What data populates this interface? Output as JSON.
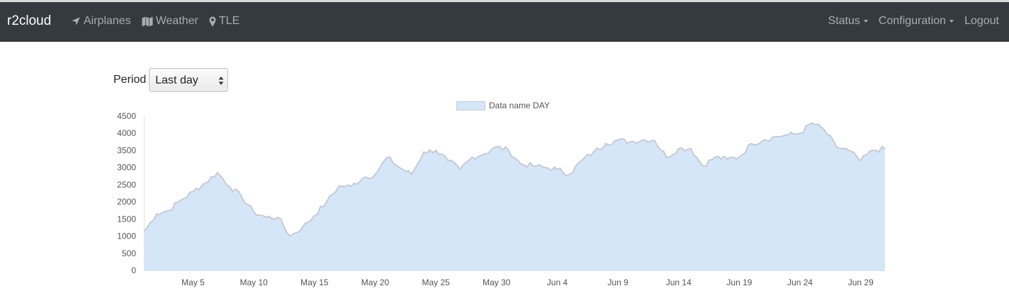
{
  "navbar": {
    "brand": "r2cloud",
    "left_items": [
      {
        "label": "Airplanes",
        "icon": "plane-icon"
      },
      {
        "label": "Weather",
        "icon": "map-icon"
      },
      {
        "label": "TLE",
        "icon": "map-marker-icon"
      }
    ],
    "right_items": [
      {
        "label": "Status",
        "dropdown": true
      },
      {
        "label": "Configuration",
        "dropdown": true
      },
      {
        "label": "Logout",
        "dropdown": false
      }
    ]
  },
  "period": {
    "label": "Period",
    "selected": "Last day"
  },
  "chart_data": {
    "type": "area",
    "legend": [
      "Data name DAY"
    ],
    "legend_position": "top",
    "series": [
      {
        "name": "Data name DAY",
        "color": "#d6e6f9",
        "line_color": "#c6cbd3",
        "x": [
          "May 1",
          "May 2",
          "May 3",
          "May 4",
          "May 5",
          "May 6",
          "May 7",
          "May 8",
          "May 9",
          "May 10",
          "May 11",
          "May 12",
          "May 13",
          "May 14",
          "May 15",
          "May 16",
          "May 17",
          "May 18",
          "May 19",
          "May 20",
          "May 21",
          "May 22",
          "May 23",
          "May 24",
          "May 25",
          "May 26",
          "May 27",
          "May 28",
          "May 29",
          "May 30",
          "May 31",
          "Jun 1",
          "Jun 2",
          "Jun 3",
          "Jun 4",
          "Jun 5",
          "Jun 6",
          "Jun 7",
          "Jun 8",
          "Jun 9",
          "Jun 10",
          "Jun 11",
          "Jun 12",
          "Jun 13",
          "Jun 14",
          "Jun 15",
          "Jun 16",
          "Jun 17",
          "Jun 18",
          "Jun 19",
          "Jun 20",
          "Jun 21",
          "Jun 22",
          "Jun 23",
          "Jun 24",
          "Jun 25",
          "Jun 26",
          "Jun 27",
          "Jun 28",
          "Jun 29",
          "Jun 30",
          "Jul 1"
        ],
        "values": [
          1150,
          1650,
          1750,
          2050,
          2300,
          2550,
          2850,
          2450,
          2150,
          1700,
          1550,
          1550,
          1000,
          1250,
          1600,
          2000,
          2450,
          2450,
          2700,
          2800,
          3300,
          3000,
          2800,
          3450,
          3500,
          3200,
          2950,
          3300,
          3400,
          3600,
          3500,
          3100,
          3050,
          3000,
          2950,
          2800,
          3200,
          3450,
          3700,
          3800,
          3750,
          3800,
          3800,
          3300,
          3550,
          3550,
          3050,
          3300,
          3250,
          3300,
          3700,
          3800,
          3900,
          3950,
          4000,
          4300,
          4100,
          3600,
          3500,
          3200,
          3500,
          3550
        ]
      }
    ],
    "x_ticks": [
      "May 5",
      "May 10",
      "May 15",
      "May 20",
      "May 25",
      "May 30",
      "Jun 4",
      "Jun 9",
      "Jun 14",
      "Jun 19",
      "Jun 24",
      "Jun 29"
    ],
    "y_ticks": [
      0,
      500,
      1000,
      1500,
      2000,
      2500,
      3000,
      3500,
      4000,
      4500
    ],
    "ylim": [
      0,
      4500
    ],
    "grid": false
  }
}
